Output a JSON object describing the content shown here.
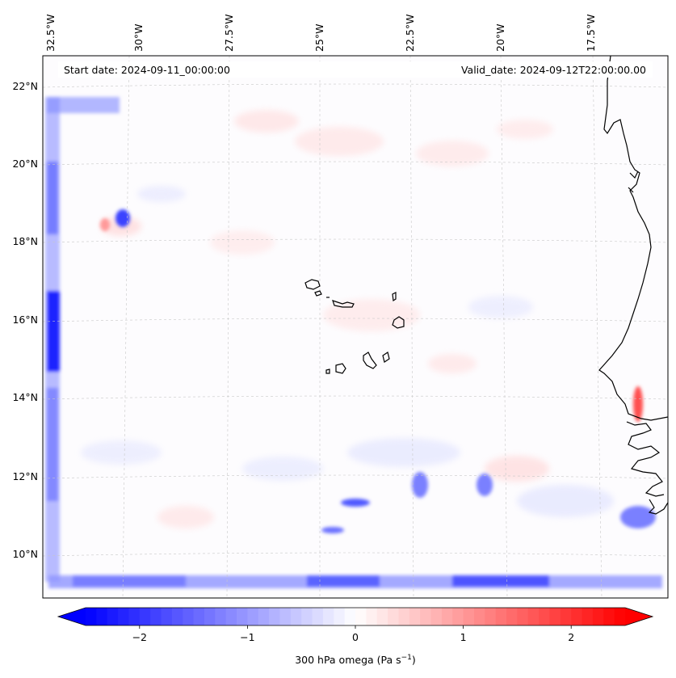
{
  "map": {
    "header_left": "Start date: 2024-09-11_00:00:00",
    "header_right": "Valid_date: 2024-09-12T22:00:00.00",
    "longitude_labels": [
      "32.5°W",
      "30°W",
      "27.5°W",
      "25°W",
      "22.5°W",
      "20°W",
      "17.5°W"
    ],
    "latitude_labels": [
      "22°N",
      "20°N",
      "18°N",
      "16°N",
      "14°N",
      "12°N",
      "10°N"
    ],
    "gridlines": true,
    "coastline_color": "#000000"
  },
  "colorbar": {
    "ticks": [
      "−2",
      "−1",
      "0",
      "1",
      "2"
    ],
    "tick_values": [
      -2,
      -1,
      0,
      1,
      2
    ],
    "range": [
      -2.5,
      2.5
    ],
    "label": "300 hPa omega (Pa s",
    "label_sup": "−1",
    "label_close": ")",
    "negative_color": "#0000ff",
    "zero_color": "#ffffff",
    "positive_color": "#ff0000"
  }
}
